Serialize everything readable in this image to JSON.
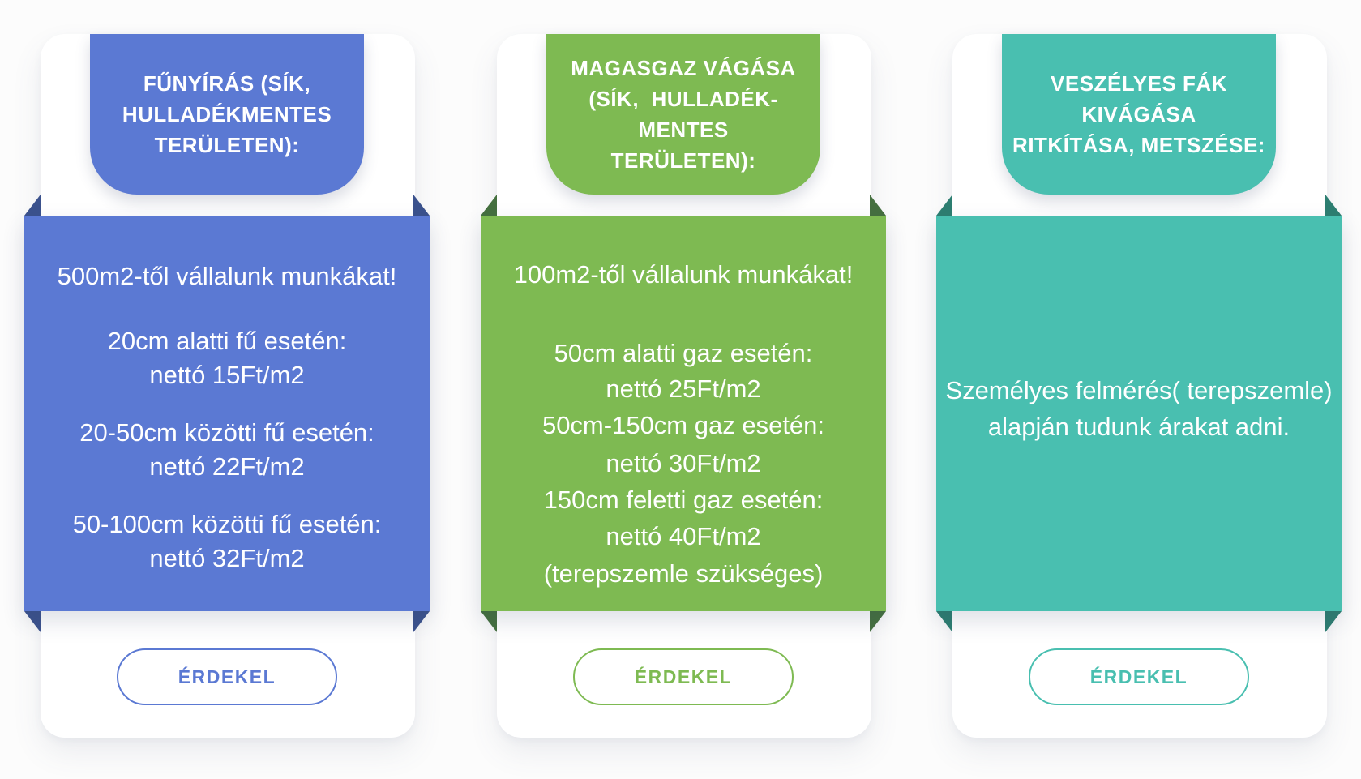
{
  "page": {
    "background_color": "#fcfcfc",
    "language": "hu"
  },
  "cards": [
    {
      "name": "funyiras",
      "colors": {
        "accent": "#5b79d3",
        "fold": "#3b528d"
      },
      "header_lines": [
        "FŰNYÍRÁS (SÍK,",
        "HULLADÉKMENTES",
        "TERÜLETEN):"
      ],
      "body_lines": [
        "500m2-től vállalunk munkákat!",
        "20cm alatti fű esetén:",
        "nettó 15Ft/m2",
        "20-50cm közötti fű esetén:",
        "nettó 22Ft/m2",
        "50-100cm közötti fű esetén:",
        "nettó 32Ft/m2"
      ],
      "button": {
        "label": "ÉRDEKEL"
      }
    },
    {
      "name": "magasgaz-vagasa",
      "colors": {
        "accent": "#7eba52",
        "fold": "#45703f"
      },
      "header_lines": [
        "MAGASGAZ VÁGÁSA",
        "(SÍK,  HULLADÉK-",
        "MENTES",
        "TERÜLETEN):"
      ],
      "body_lines": [
        "100m2-től vállalunk munkákat!",
        "50cm alatti gaz esetén:",
        "nettó 25Ft/m2",
        "50cm-150cm gaz esetén:",
        "nettó 30Ft/m2",
        "150cm feletti gaz esetén:",
        "nettó 40Ft/m2",
        "(terepszemle szükséges)"
      ],
      "button": {
        "label": "ÉRDEKEL"
      }
    },
    {
      "name": "veszelyes-fak",
      "colors": {
        "accent": "#49bfb0",
        "fold": "#2d7e71"
      },
      "header_lines": [
        "VESZÉLYES FÁK",
        "KIVÁGÁSA",
        "RITKÍTÁSA, METSZÉSE:"
      ],
      "body_lines": [
        "Személyes felmérés( terepszemle)",
        "alapján tudunk árakat adni."
      ],
      "button": {
        "label": "ÉRDEKEL"
      }
    }
  ]
}
